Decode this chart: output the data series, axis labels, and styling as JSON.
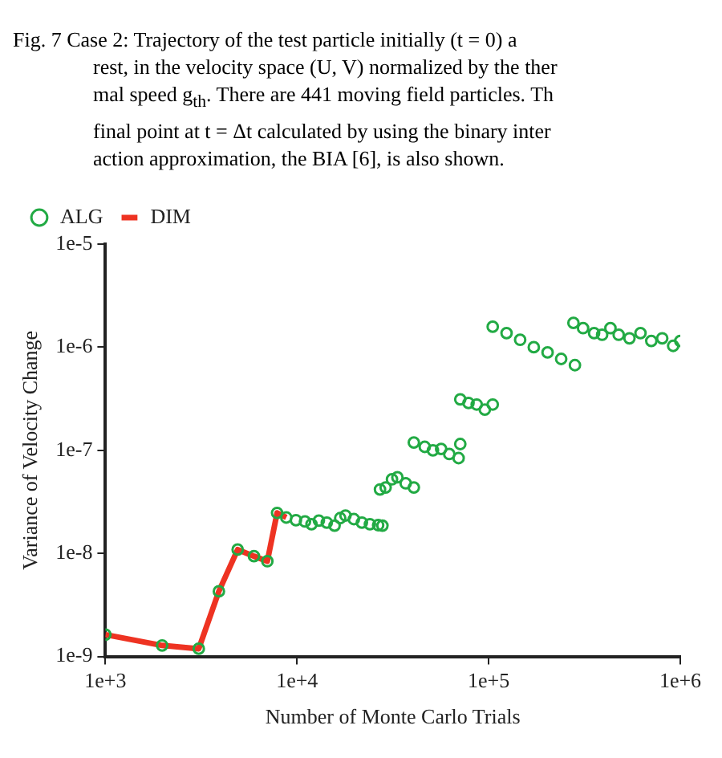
{
  "chart_data": {
    "type": "scatter",
    "xlabel": "Number of Monte Carlo Trials",
    "ylabel": "Variance of Velocity Change",
    "annotations": [
      "Fig. 7   Case 2: Trajectory of the test particle initially (t = 0) a",
      "rest, in the velocity space (U, V) normalized by the ther",
      "mal speed g$_{th}$. There are 441 moving field particles. Th",
      "final point at t = Δt calculated by using the binary inter",
      "action approximation, the BIA [6], is also shown."
    ],
    "log": "xy",
    "grid": false,
    "legend": "top left",
    "xlim": [
      1000,
      1000000
    ],
    "xticks": [
      {
        "value": 1000,
        "label": "1e+3"
      },
      {
        "value": 10000,
        "label": "1e+4"
      },
      {
        "value": 100000,
        "label": "1e+5"
      },
      {
        "value": 1000000,
        "label": "1e+6"
      }
    ],
    "ylim": [
      1e-09,
      1e-05
    ],
    "yticks": [
      {
        "value": 1e-09,
        "label": "1e-9"
      },
      {
        "value": 1e-08,
        "label": "1e-8"
      },
      {
        "value": 1e-07,
        "label": "1e-7"
      },
      {
        "value": 1e-06,
        "label": "1e-6"
      },
      {
        "value": 1e-05,
        "label": "1e-5"
      }
    ],
    "series": [
      {
        "name": "ALG",
        "marker": "circle",
        "color": "#22aa44",
        "x": [
          1000,
          1977,
          3070,
          3910,
          4900,
          5960,
          7000,
          7870,
          8790,
          9870,
          11000,
          11900,
          13000,
          14300,
          15700,
          16800,
          17900,
          19800,
          21800,
          24000,
          26500,
          27900,
          27100,
          29000,
          31300,
          33400,
          36900,
          40700,
          40700,
          46400,
          51200,
          56500,
          62300,
          69700,
          71100,
          71100,
          78500,
          86600,
          95500,
          105000,
          105000,
          124000,
          146000,
          172000,
          203000,
          239000,
          282000,
          277000,
          311000,
          355000,
          391000,
          432000,
          477000,
          543000,
          620000,
          706000,
          805000,
          918000,
          1000000
        ],
        "values": [
          1.63e-09,
          1.28e-09,
          1.19e-09,
          4.29e-09,
          1.09e-08,
          9.4e-09,
          8.4e-09,
          2.47e-08,
          2.23e-08,
          2.1e-08,
          2.04e-08,
          1.92e-08,
          2.08e-08,
          1.99e-08,
          1.86e-08,
          2.2e-08,
          2.33e-08,
          2.15e-08,
          1.99e-08,
          1.92e-08,
          1.88e-08,
          1.86e-08,
          4.17e-08,
          4.36e-08,
          5.23e-08,
          5.47e-08,
          4.78e-08,
          4.36e-08,
          1.19e-07,
          1.08e-07,
          1e-07,
          1.03e-07,
          9.2e-08,
          8.4e-08,
          1.15e-07,
          3.12e-07,
          2.88e-07,
          2.78e-07,
          2.48e-07,
          2.78e-07,
          1.58e-06,
          1.37e-06,
          1.18e-06,
          1e-06,
          8.9e-07,
          7.7e-07,
          6.7e-07,
          1.72e-06,
          1.53e-06,
          1.37e-06,
          1.32e-06,
          1.53e-06,
          1.32e-06,
          1.22e-06,
          1.37e-06,
          1.15e-06,
          1.22e-06,
          1.03e-06,
          1.15e-06
        ]
      },
      {
        "name": "DIM",
        "type": "line",
        "marker": "none",
        "color": "#ee3322",
        "x": [
          1000,
          1977,
          3070,
          3910,
          4900,
          5960,
          7000,
          7870,
          8790
        ],
        "values": [
          1.63e-09,
          1.28e-09,
          1.19e-09,
          4.29e-09,
          1.09e-08,
          9.4e-09,
          8.4e-09,
          2.47e-08,
          2.23e-08
        ]
      }
    ]
  }
}
